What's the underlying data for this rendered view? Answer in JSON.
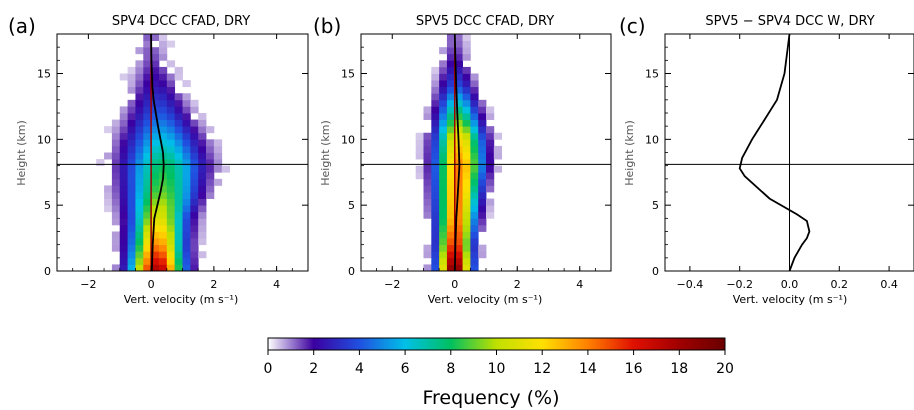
{
  "chart_data": [
    {
      "type": "heatmap",
      "panel_label": "(a)",
      "title": "SPV4 DCC CFAD, DRY",
      "xlabel": "Vert. velocity (m s⁻¹)",
      "ylabel": "Height (km)",
      "xlim": [
        -3,
        5
      ],
      "ylim": [
        0,
        18
      ],
      "xticks": [
        "−2",
        "0",
        "2",
        "4"
      ],
      "yticks": [
        "0",
        "5",
        "10",
        "15"
      ],
      "reference_line_height_km": 8.1,
      "mean_profile": {
        "color": "#000000",
        "height": [
          0,
          2,
          4,
          6,
          7,
          8,
          9,
          10,
          11,
          12,
          13,
          14,
          16,
          18
        ],
        "w": [
          0.02,
          0.05,
          0.1,
          0.3,
          0.38,
          0.4,
          0.38,
          0.3,
          0.22,
          0.15,
          0.08,
          0.04,
          0.01,
          0.0
        ]
      },
      "distribution": {
        "height": [
          0,
          2,
          4,
          6,
          8,
          10,
          12,
          14,
          16,
          18
        ],
        "center_w": [
          0.2,
          0.2,
          0.25,
          0.35,
          0.4,
          0.35,
          0.25,
          0.15,
          0.05,
          0.0
        ],
        "spread_w": [
          0.55,
          0.55,
          0.6,
          0.75,
          0.85,
          0.8,
          0.65,
          0.5,
          0.35,
          0.25
        ],
        "peak_frequency": [
          18,
          14,
          11,
          9,
          8,
          6,
          4,
          2.5,
          1.5,
          1
        ]
      }
    },
    {
      "type": "heatmap",
      "panel_label": "(b)",
      "title": "SPV5 DCC CFAD, DRY",
      "xlabel": "Vert. velocity (m s⁻¹)",
      "ylabel": "Height (km)",
      "xlim": [
        -3,
        5
      ],
      "ylim": [
        0,
        18
      ],
      "xticks": [
        "−2",
        "0",
        "2",
        "4"
      ],
      "yticks": [
        "0",
        "5",
        "10",
        "15"
      ],
      "reference_line_height_km": 8.1,
      "mean_profile": {
        "color": "#000000",
        "height": [
          0,
          2,
          4,
          6,
          8,
          10,
          12,
          14,
          16,
          18
        ],
        "w": [
          0.0,
          0.02,
          0.05,
          0.1,
          0.15,
          0.12,
          0.08,
          0.05,
          0.02,
          0.0
        ]
      },
      "distribution": {
        "height": [
          0,
          2,
          4,
          6,
          8,
          10,
          12,
          14,
          16,
          18
        ],
        "center_w": [
          0.0,
          0.0,
          0.05,
          0.1,
          0.15,
          0.15,
          0.1,
          0.05,
          0.0,
          0.0
        ],
        "spread_w": [
          0.35,
          0.35,
          0.4,
          0.45,
          0.5,
          0.5,
          0.45,
          0.4,
          0.3,
          0.25
        ],
        "peak_frequency": [
          20,
          16,
          14,
          14,
          14,
          12,
          8,
          4,
          2,
          1
        ]
      }
    },
    {
      "type": "line",
      "panel_label": "(c)",
      "title": "SPV5 − SPV4 DCC W, DRY",
      "xlabel": "Vert. velocity (m s⁻¹)",
      "ylabel": "Height (km)",
      "xlim": [
        -0.5,
        0.5
      ],
      "ylim": [
        0,
        18
      ],
      "xticks": [
        "−0.4",
        "−0.2",
        "0.0",
        "0.2",
        "0.4"
      ],
      "yticks": [
        "0",
        "5",
        "10",
        "15"
      ],
      "reference_line_height_km": 8.1,
      "series": [
        {
          "color": "#000000",
          "x": [
            0.0,
            0.02,
            0.05,
            0.07,
            0.08,
            0.07,
            0.03,
            -0.08,
            -0.18,
            -0.2,
            -0.19,
            -0.15,
            -0.1,
            -0.05,
            -0.02,
            0.0
          ],
          "y": [
            0,
            1,
            2,
            2.5,
            3,
            3.8,
            4.3,
            5.5,
            7.2,
            7.8,
            8.6,
            10.0,
            11.5,
            13.0,
            15.0,
            18.0
          ]
        }
      ]
    }
  ],
  "colorbar": {
    "label": "Frequency (%)",
    "min": 0,
    "max": 20,
    "ticks": [
      "0",
      "2",
      "4",
      "6",
      "8",
      "10",
      "12",
      "14",
      "16",
      "18",
      "20"
    ],
    "colors": [
      "#ffffff",
      "#3b00a0",
      "#2050e0",
      "#00c0e8",
      "#00c060",
      "#c0e000",
      "#ffe000",
      "#ff8000",
      "#e01000",
      "#a00000",
      "#6a0000"
    ]
  }
}
